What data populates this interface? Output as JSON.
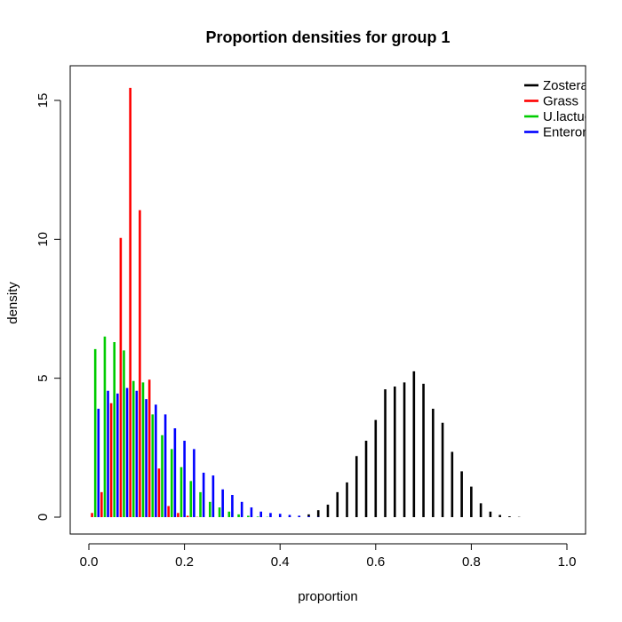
{
  "chart_data": {
    "type": "bar",
    "title": "Proportion densities for group 1",
    "xlabel": "proportion",
    "ylabel": "density",
    "xlim": [
      0,
      1
    ],
    "ylim": [
      0,
      15.5
    ],
    "x_ticks": [
      "0.0",
      "0.2",
      "0.4",
      "0.6",
      "0.8",
      "1.0"
    ],
    "y_ticks": [
      "0",
      "5",
      "10",
      "15"
    ],
    "legend_position": "top-right",
    "grid": false,
    "x": [
      0.01,
      0.03,
      0.05,
      0.07,
      0.09,
      0.11,
      0.13,
      0.15,
      0.17,
      0.19,
      0.21,
      0.23,
      0.25,
      0.27,
      0.29,
      0.31,
      0.33,
      0.35,
      0.37,
      0.39,
      0.41,
      0.43,
      0.45,
      0.47,
      0.49,
      0.51,
      0.53,
      0.55,
      0.57,
      0.59,
      0.61,
      0.63,
      0.65,
      0.67,
      0.69,
      0.71,
      0.73,
      0.75,
      0.77,
      0.79,
      0.81,
      0.83,
      0.85,
      0.87,
      0.89,
      0.91
    ],
    "series": [
      {
        "name": "Zostera",
        "color": "#000000",
        "values": [
          0,
          0,
          0,
          0,
          0,
          0,
          0,
          0,
          0,
          0,
          0,
          0,
          0,
          0,
          0,
          0,
          0,
          0,
          0,
          0,
          0,
          0.02,
          0.05,
          0.1,
          0.25,
          0.45,
          0.9,
          1.25,
          2.2,
          2.75,
          3.5,
          4.6,
          4.7,
          4.85,
          5.25,
          4.8,
          3.9,
          3.4,
          2.35,
          1.65,
          1.1,
          0.5,
          0.2,
          0.08,
          0.03,
          0.01
        ]
      },
      {
        "name": "Grass",
        "color": "#ff0000",
        "values": [
          0.15,
          0.9,
          4.1,
          10.05,
          15.45,
          11.05,
          4.95,
          1.75,
          0.4,
          0.15,
          0.05,
          0.01,
          0,
          0,
          0,
          0,
          0,
          0,
          0,
          0,
          0,
          0,
          0,
          0,
          0,
          0,
          0,
          0,
          0,
          0,
          0,
          0,
          0,
          0,
          0,
          0,
          0,
          0,
          0,
          0,
          0,
          0,
          0,
          0,
          0,
          0
        ]
      },
      {
        "name": "U.lactuca",
        "color": "#00cc00",
        "values": [
          6.05,
          6.5,
          6.3,
          6.0,
          4.9,
          4.85,
          3.7,
          2.95,
          2.45,
          1.8,
          1.3,
          0.9,
          0.55,
          0.35,
          0.2,
          0.1,
          0.05,
          0.02,
          0.01,
          0,
          0,
          0,
          0,
          0,
          0,
          0,
          0,
          0,
          0,
          0,
          0,
          0,
          0,
          0,
          0,
          0,
          0,
          0,
          0,
          0,
          0,
          0,
          0,
          0,
          0,
          0
        ]
      },
      {
        "name": "Enteromorpha",
        "color": "#0000ff",
        "values": [
          3.9,
          4.55,
          4.45,
          4.65,
          4.55,
          4.25,
          4.05,
          3.7,
          3.2,
          2.75,
          2.45,
          1.6,
          1.5,
          1.0,
          0.8,
          0.55,
          0.35,
          0.2,
          0.15,
          0.12,
          0.08,
          0.05,
          0.03,
          0.01,
          0,
          0,
          0,
          0,
          0,
          0,
          0,
          0,
          0,
          0,
          0,
          0,
          0,
          0,
          0,
          0,
          0,
          0,
          0,
          0,
          0,
          0
        ]
      }
    ]
  }
}
